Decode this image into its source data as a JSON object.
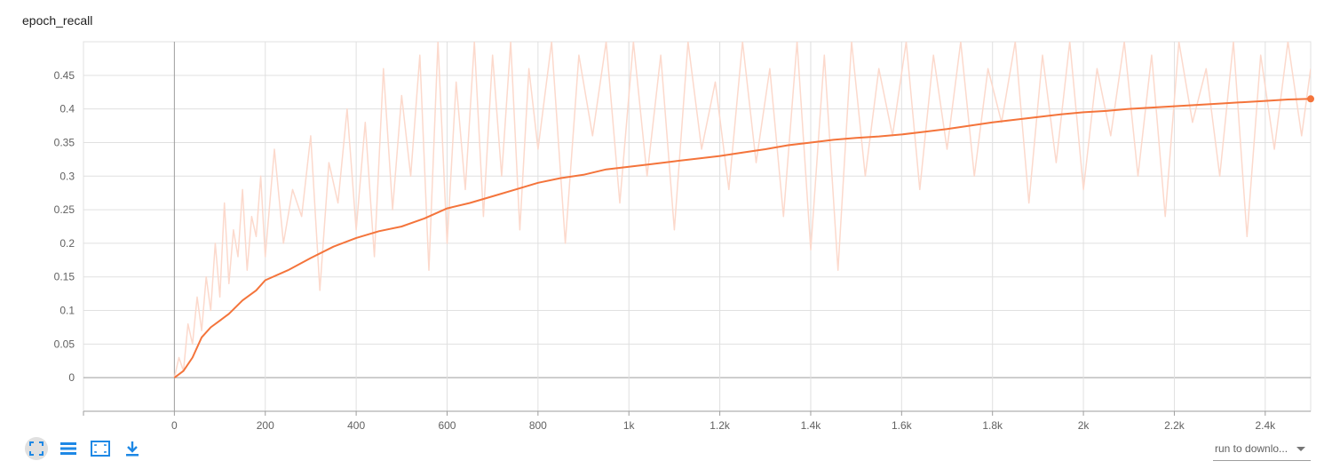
{
  "card": {
    "title": "epoch_recall"
  },
  "toolbar": {
    "icons": [
      "fullscreen-icon",
      "list-icon",
      "fit-domain-icon",
      "download-icon"
    ]
  },
  "run_selector": {
    "label": "run to downlo..."
  },
  "colors": {
    "smoothed": "#f4743b",
    "raw": "#fcd9cc",
    "grid": "#e0e0e0",
    "axis": "#9e9e9e"
  },
  "chart_data": {
    "type": "line",
    "title": "epoch_recall",
    "xlabel": "",
    "ylabel": "",
    "xlim": [
      -200,
      2500
    ],
    "ylim": [
      -0.05,
      0.5
    ],
    "grid": true,
    "x_ticks": [
      {
        "v": 0,
        "label": "0"
      },
      {
        "v": 200,
        "label": "200"
      },
      {
        "v": 400,
        "label": "400"
      },
      {
        "v": 600,
        "label": "600"
      },
      {
        "v": 800,
        "label": "800"
      },
      {
        "v": 1000,
        "label": "1k"
      },
      {
        "v": 1200,
        "label": "1.2k"
      },
      {
        "v": 1400,
        "label": "1.4k"
      },
      {
        "v": 1600,
        "label": "1.6k"
      },
      {
        "v": 1800,
        "label": "1.8k"
      },
      {
        "v": 2000,
        "label": "2k"
      },
      {
        "v": 2200,
        "label": "2.2k"
      },
      {
        "v": 2400,
        "label": "2.4k"
      }
    ],
    "y_ticks": [
      {
        "v": 0,
        "label": "0"
      },
      {
        "v": 0.05,
        "label": "0.05"
      },
      {
        "v": 0.1,
        "label": "0.1"
      },
      {
        "v": 0.15,
        "label": "0.15"
      },
      {
        "v": 0.2,
        "label": "0.2"
      },
      {
        "v": 0.25,
        "label": "0.25"
      },
      {
        "v": 0.3,
        "label": "0.3"
      },
      {
        "v": 0.35,
        "label": "0.35"
      },
      {
        "v": 0.4,
        "label": "0.4"
      },
      {
        "v": 0.45,
        "label": "0.45"
      }
    ],
    "series": [
      {
        "role": "smoothed",
        "x": [
          0,
          20,
          40,
          60,
          80,
          100,
          120,
          150,
          180,
          200,
          250,
          300,
          350,
          400,
          450,
          500,
          550,
          600,
          650,
          700,
          750,
          800,
          850,
          900,
          950,
          1000,
          1050,
          1100,
          1150,
          1200,
          1250,
          1300,
          1350,
          1400,
          1450,
          1500,
          1550,
          1600,
          1650,
          1700,
          1750,
          1800,
          1850,
          1900,
          1950,
          2000,
          2050,
          2100,
          2150,
          2200,
          2250,
          2300,
          2350,
          2400,
          2450,
          2500
        ],
        "y": [
          0,
          0.01,
          0.03,
          0.06,
          0.075,
          0.085,
          0.095,
          0.115,
          0.13,
          0.145,
          0.16,
          0.178,
          0.195,
          0.208,
          0.218,
          0.225,
          0.237,
          0.252,
          0.26,
          0.27,
          0.28,
          0.29,
          0.297,
          0.302,
          0.31,
          0.314,
          0.318,
          0.322,
          0.326,
          0.33,
          0.335,
          0.34,
          0.346,
          0.35,
          0.354,
          0.357,
          0.359,
          0.362,
          0.366,
          0.37,
          0.375,
          0.38,
          0.384,
          0.388,
          0.392,
          0.395,
          0.397,
          0.4,
          0.402,
          0.404,
          0.406,
          0.408,
          0.41,
          0.412,
          0.414,
          0.415
        ]
      },
      {
        "role": "raw",
        "x": [
          0,
          10,
          20,
          30,
          40,
          50,
          60,
          70,
          80,
          90,
          100,
          110,
          120,
          130,
          140,
          150,
          160,
          170,
          180,
          190,
          200,
          220,
          240,
          260,
          280,
          300,
          320,
          340,
          360,
          380,
          400,
          420,
          440,
          460,
          480,
          500,
          520,
          540,
          560,
          580,
          600,
          620,
          640,
          660,
          680,
          700,
          720,
          740,
          760,
          780,
          800,
          830,
          860,
          890,
          920,
          950,
          980,
          1010,
          1040,
          1070,
          1100,
          1130,
          1160,
          1190,
          1220,
          1250,
          1280,
          1310,
          1340,
          1370,
          1400,
          1430,
          1460,
          1490,
          1520,
          1550,
          1580,
          1610,
          1640,
          1670,
          1700,
          1730,
          1760,
          1790,
          1820,
          1850,
          1880,
          1910,
          1940,
          1970,
          2000,
          2030,
          2060,
          2090,
          2120,
          2150,
          2180,
          2210,
          2240,
          2270,
          2300,
          2330,
          2360,
          2390,
          2420,
          2450,
          2480,
          2500
        ],
        "y": [
          0,
          0.03,
          0.01,
          0.08,
          0.05,
          0.12,
          0.07,
          0.15,
          0.1,
          0.2,
          0.12,
          0.26,
          0.14,
          0.22,
          0.18,
          0.28,
          0.16,
          0.24,
          0.21,
          0.3,
          0.18,
          0.34,
          0.2,
          0.28,
          0.24,
          0.36,
          0.13,
          0.32,
          0.26,
          0.4,
          0.22,
          0.38,
          0.18,
          0.46,
          0.25,
          0.42,
          0.3,
          0.48,
          0.16,
          0.5,
          0.2,
          0.44,
          0.28,
          0.5,
          0.24,
          0.48,
          0.3,
          0.5,
          0.22,
          0.46,
          0.34,
          0.5,
          0.2,
          0.48,
          0.36,
          0.5,
          0.26,
          0.5,
          0.3,
          0.48,
          0.22,
          0.5,
          0.34,
          0.44,
          0.28,
          0.5,
          0.32,
          0.46,
          0.24,
          0.5,
          0.19,
          0.48,
          0.16,
          0.5,
          0.3,
          0.46,
          0.36,
          0.5,
          0.28,
          0.48,
          0.34,
          0.5,
          0.3,
          0.46,
          0.38,
          0.5,
          0.26,
          0.48,
          0.32,
          0.5,
          0.28,
          0.46,
          0.36,
          0.5,
          0.3,
          0.48,
          0.24,
          0.5,
          0.38,
          0.46,
          0.3,
          0.5,
          0.21,
          0.48,
          0.34,
          0.5,
          0.36,
          0.46
        ]
      }
    ]
  }
}
